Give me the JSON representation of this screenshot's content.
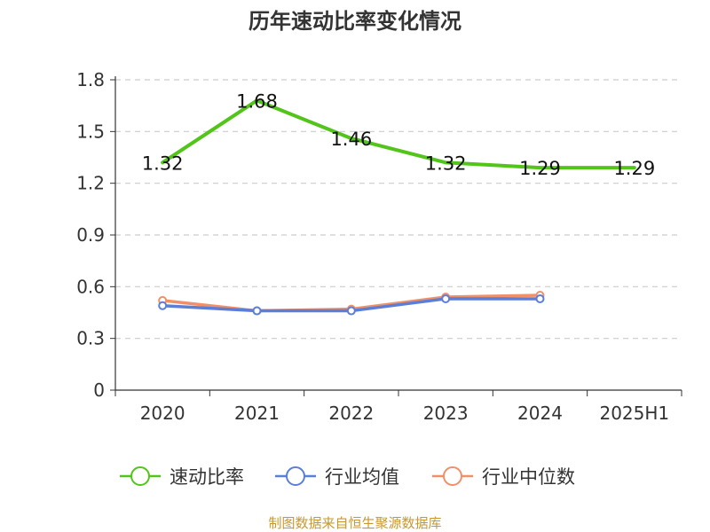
{
  "chart_data": {
    "type": "line",
    "title": "历年速动比率变化情况",
    "categories": [
      "2020",
      "2021",
      "2022",
      "2023",
      "2024",
      "2025H1"
    ],
    "y_ticks": [
      "0",
      "0.3",
      "0.6",
      "0.9",
      "1.2",
      "1.5",
      "1.8"
    ],
    "ylim": [
      0,
      1.8
    ],
    "grid": true,
    "legend_position": "bottom",
    "series": [
      {
        "name": "速动比率",
        "color": "#52c41a",
        "values": [
          1.32,
          1.68,
          1.46,
          1.32,
          1.29,
          1.29
        ],
        "labels": [
          "1.32",
          "1.68",
          "1.46",
          "1.32",
          "1.29",
          "1.29"
        ]
      },
      {
        "name": "行业均值",
        "color": "#5b7fd6",
        "values": [
          0.49,
          0.46,
          0.46,
          0.53,
          0.53,
          null
        ]
      },
      {
        "name": "行业中位数",
        "color": "#f0906a",
        "values": [
          0.52,
          0.46,
          0.47,
          0.54,
          0.55,
          null
        ]
      }
    ]
  },
  "source": "制图数据来自恒生聚源数据库"
}
